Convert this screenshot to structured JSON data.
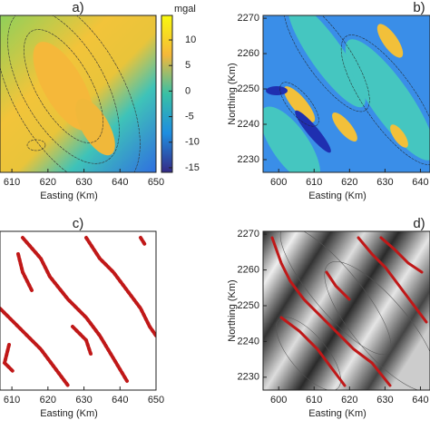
{
  "chart_data": [
    {
      "type": "contour",
      "label": "a)",
      "xlabel": "Easting (Km)",
      "xlim": [
        606.7,
        650
      ],
      "xticks": [
        610,
        620,
        630,
        640,
        650
      ],
      "colorbar": {
        "label": "mgal",
        "lim": [
          -15.9,
          14.8
        ],
        "ticks": [
          10,
          5,
          0,
          -5,
          -10,
          -15
        ]
      }
    },
    {
      "type": "contour",
      "label": "b)",
      "xlabel": "Easting (Km)",
      "ylabel": "Northing (Km)",
      "xlim": [
        595.6,
        642.7
      ],
      "xticks": [
        600,
        610,
        620,
        630,
        640
      ],
      "ylim": [
        2226.4,
        2270.8
      ],
      "yticks": [
        2230,
        2240,
        2250,
        2260,
        2270
      ]
    },
    {
      "type": "lineament",
      "label": "c)",
      "xlabel": "Easting (Km)",
      "xlim": [
        606.7,
        650
      ],
      "xticks": [
        610,
        620,
        630,
        640,
        650
      ]
    },
    {
      "type": "shaded",
      "label": "d)",
      "xlabel": "Easting (Km)",
      "ylabel": "Northing (Km)",
      "xlim": [
        595.6,
        642.7
      ],
      "xticks": [
        600,
        610,
        620,
        630,
        640
      ],
      "ylim": [
        2226.4,
        2270.8
      ],
      "yticks": [
        2230,
        2240,
        2250,
        2260,
        2270
      ]
    }
  ]
}
